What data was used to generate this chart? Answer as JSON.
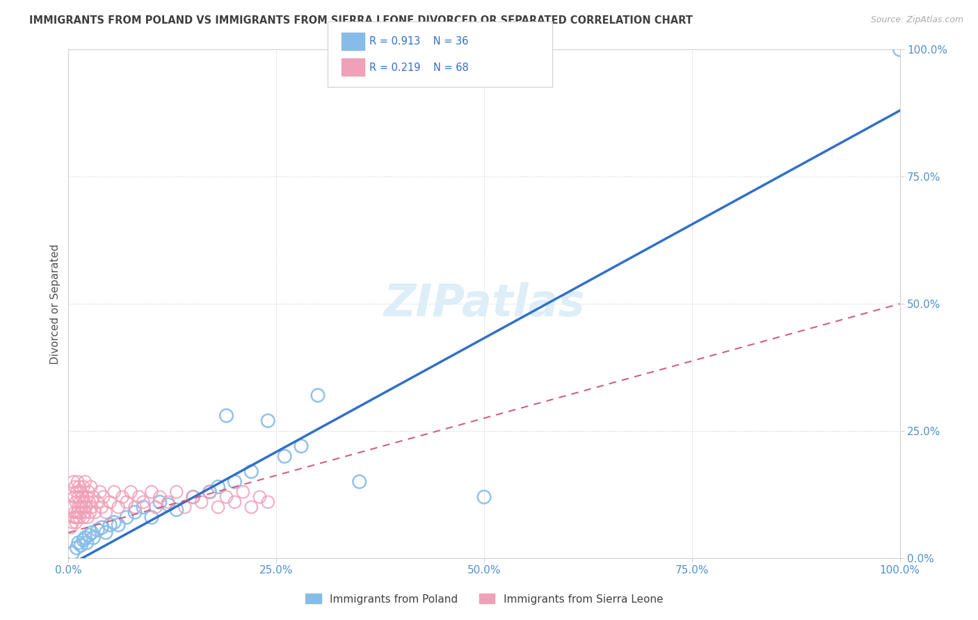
{
  "title": "IMMIGRANTS FROM POLAND VS IMMIGRANTS FROM SIERRA LEONE DIVORCED OR SEPARATED CORRELATION CHART",
  "source": "Source: ZipAtlas.com",
  "ylabel": "Divorced or Separated",
  "poland_R": 0.913,
  "poland_N": 36,
  "sierra_leone_R": 0.219,
  "sierra_leone_N": 68,
  "poland_color": "#87bce8",
  "sierra_leone_color": "#f0a0b8",
  "poland_line_color": "#3070c8",
  "sierra_leone_line_color": "#d06080",
  "background_color": "#ffffff",
  "grid_color": "#c8c8c8",
  "axis_label_color": "#5090d0",
  "title_color": "#404040",
  "watermark_color": "#ddeef8",
  "legend_label_poland": "Immigrants from Poland",
  "legend_label_sierra": "Immigrants from Sierra Leone",
  "xlim": [
    0.0,
    100.0
  ],
  "ylim": [
    0.0,
    100.0
  ],
  "xticks": [
    0.0,
    25.0,
    50.0,
    75.0,
    100.0
  ],
  "yticks": [
    0.0,
    25.0,
    50.0,
    75.0,
    100.0
  ],
  "poland_line_x0": 0.0,
  "poland_line_y0": -1.5,
  "poland_line_x1": 100.0,
  "poland_line_y1": 88.0,
  "sierra_line_x0": 0.0,
  "sierra_line_y0": 5.0,
  "sierra_line_x1": 100.0,
  "sierra_line_y1": 50.0,
  "poland_scatter_x": [
    0.5,
    1.0,
    1.2,
    1.5,
    1.8,
    2.0,
    2.2,
    2.5,
    2.8,
    3.0,
    3.5,
    4.0,
    4.5,
    5.0,
    5.5,
    6.0,
    7.0,
    8.0,
    9.0,
    10.0,
    11.0,
    12.0,
    13.0,
    15.0,
    17.0,
    18.0,
    19.0,
    20.0,
    22.0,
    24.0,
    26.0,
    28.0,
    30.0,
    35.0,
    50.0,
    100.0
  ],
  "poland_scatter_y": [
    1.0,
    2.0,
    3.0,
    2.5,
    3.5,
    4.0,
    3.0,
    4.5,
    5.0,
    4.0,
    5.5,
    6.0,
    5.0,
    6.5,
    7.0,
    6.5,
    8.0,
    9.0,
    10.0,
    8.0,
    11.0,
    10.5,
    9.5,
    12.0,
    13.0,
    14.0,
    28.0,
    15.0,
    17.0,
    27.0,
    20.0,
    22.0,
    32.0,
    15.0,
    12.0,
    100.0
  ],
  "sierra_leone_scatter_x": [
    0.3,
    0.4,
    0.5,
    0.6,
    0.7,
    0.7,
    0.8,
    0.8,
    0.9,
    0.9,
    1.0,
    1.0,
    1.1,
    1.1,
    1.2,
    1.2,
    1.3,
    1.3,
    1.4,
    1.5,
    1.5,
    1.6,
    1.7,
    1.8,
    1.8,
    1.9,
    2.0,
    2.0,
    2.1,
    2.2,
    2.3,
    2.4,
    2.5,
    2.6,
    2.7,
    2.8,
    3.0,
    3.2,
    3.5,
    3.8,
    4.0,
    4.2,
    4.5,
    5.0,
    5.5,
    6.0,
    6.5,
    7.0,
    7.5,
    8.0,
    8.5,
    9.0,
    10.0,
    10.5,
    11.0,
    12.0,
    13.0,
    14.0,
    15.0,
    16.0,
    17.0,
    18.0,
    19.0,
    20.0,
    21.0,
    22.0,
    23.0,
    24.0
  ],
  "sierra_leone_scatter_y": [
    6.0,
    10.0,
    7.0,
    15.0,
    8.0,
    12.0,
    9.0,
    14.0,
    7.0,
    11.0,
    8.0,
    13.0,
    9.0,
    15.0,
    10.0,
    12.0,
    8.0,
    14.0,
    11.0,
    9.0,
    13.0,
    10.0,
    12.0,
    8.0,
    14.0,
    11.0,
    9.0,
    15.0,
    10.0,
    12.0,
    8.0,
    13.0,
    11.0,
    9.0,
    14.0,
    10.0,
    12.0,
    9.0,
    11.0,
    13.0,
    10.0,
    12.0,
    9.0,
    11.0,
    13.0,
    10.0,
    12.0,
    11.0,
    13.0,
    10.0,
    12.0,
    11.0,
    13.0,
    10.0,
    12.0,
    11.0,
    13.0,
    10.0,
    12.0,
    11.0,
    13.0,
    10.0,
    12.0,
    11.0,
    13.0,
    10.0,
    12.0,
    11.0
  ]
}
